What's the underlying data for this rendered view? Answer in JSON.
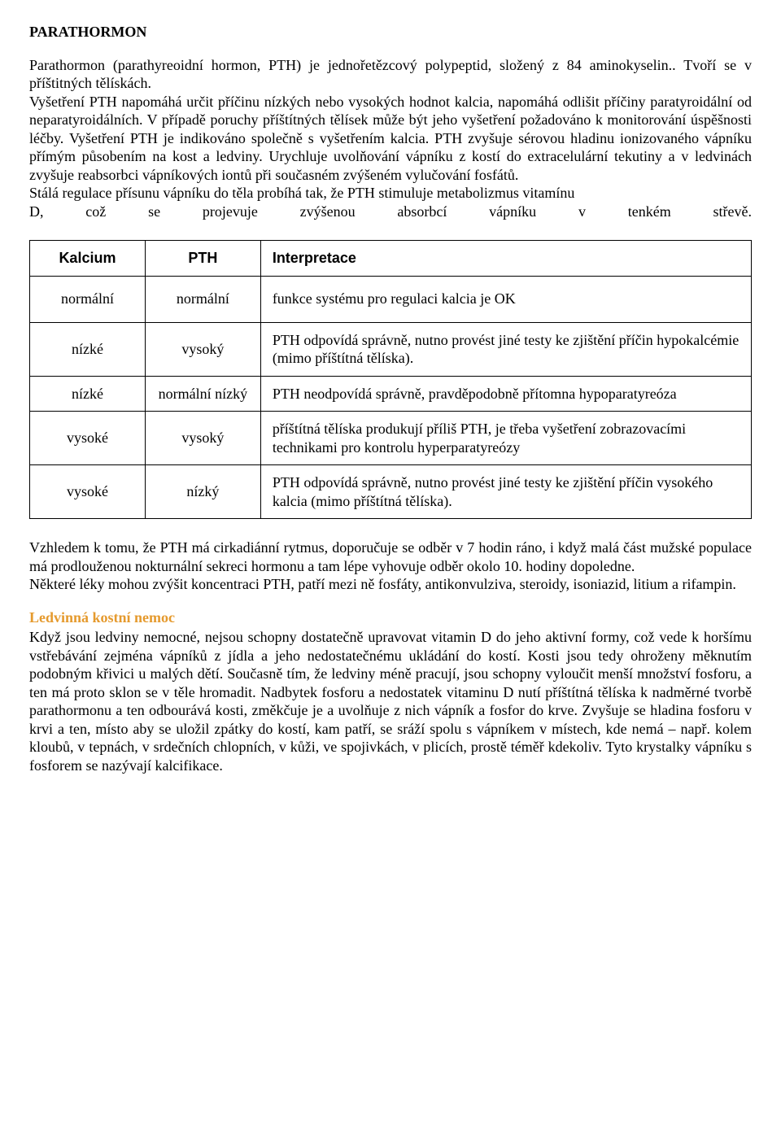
{
  "title": "PARATHORMON",
  "paragraphs": {
    "p1": "Parathormon (parathyreoidní hormon, PTH) je jednořetězcový polypeptid, složený z 84 aminokyselin.. Tvoří se v příštitných tělískách.",
    "p2": "Vyšetření PTH napomáhá určit příčinu nízkých nebo vysokých hodnot kalcia, napomáhá odlišit příčiny paratyroidální od neparatyroidálních. V případě poruchy příštítných tělísek může být jeho vyšetření požadováno k monitorování úspěšnosti léčby. Vyšetření PTH je indikováno společně s vyšetřením kalcia. PTH zvyšuje sérovou hladinu ionizovaného vápníku přímým působením na kost a ledviny. Urychluje uvolňování vápníku z kostí do extracelulární tekutiny a v ledvinách zvyšuje reabsorbci vápníkových iontů při současném zvýšeném vylučování fosfátů.",
    "p3a": "Stálá regulace přísunu vápníku do těla probíhá tak, že PTH stimuluje metabolizmus vitamínu",
    "p3b": "D, což se projevuje zvýšenou absorbcí vápníku v tenkém střevě."
  },
  "table": {
    "columns": [
      "Kalcium",
      "PTH",
      "Interpretace"
    ],
    "rows": [
      [
        "normální",
        "normální",
        "funkce systému pro regulaci kalcia je OK"
      ],
      [
        "nízké",
        "vysoký",
        "PTH odpovídá správně, nutno provést jiné testy ke zjištění příčin hypokalcémie (mimo příštítná tělíska)."
      ],
      [
        "nízké",
        "normální nízký",
        "PTH neodpovídá správně, pravděpodobně přítomna hypoparatyreóza"
      ],
      [
        "vysoké",
        "vysoký",
        "příštítná tělíska produkují příliš PTH, je třeba vyšetření zobrazovacími technikami pro kontrolu hyperparatyreózy"
      ],
      [
        "vysoké",
        "nízký",
        "PTH odpovídá správně, nutno provést jiné testy ke zjištění příčin vysokého kalcia (mimo příštítná tělíska)."
      ]
    ]
  },
  "after_table": {
    "p4": "Vzhledem k tomu, že PTH má cirkadiánní rytmus, doporučuje se odběr v 7 hodin ráno, i když malá část mužské populace má prodlouženou nokturnální sekreci hormonu a tam lépe vyhovuje odběr okolo 10. hodiny dopoledne.",
    "p5": "Některé léky mohou zvýšit koncentraci PTH, patří mezi ně fosfáty, antikonvulziva, steroidy, isoniazid, litium a rifampin."
  },
  "subheading": "Ledvinná kostní nemoc",
  "kidney_para": "Když jsou ledviny nemocné, nejsou schopny dostatečně upravovat vitamin D do jeho aktivní formy, což vede k horšímu vstřebávání zejména vápníků z jídla a jeho nedostatečnému ukládání do kostí. Kosti jsou tedy ohroženy měknutím podobným křivici u malých dětí. Současně tím, že ledviny méně pracují, jsou schopny vyloučit menší množství fosforu, a ten má proto sklon se v těle hromadit. Nadbytek fosforu a nedostatek vitaminu D nutí příštítná tělíska k nadměrné tvorbě parathormonu a ten odbourává kosti, změkčuje je a uvolňuje z nich vápník a fosfor do krve. Zvyšuje se hladina fosforu v krvi a ten, místo aby se uložil zpátky do kostí, kam patří, se sráží spolu s vápníkem v místech, kde nemá – např. kolem kloubů, v tepnách, v srdečních chlopních, v kůži, ve spojivkách, v plicích, prostě téměř kdekoliv. Tyto krystalky vápníku s fosforem se nazývají kalcifikace.",
  "colors": {
    "text": "#000000",
    "background": "#ffffff",
    "subheading": "#e59a2e",
    "border": "#000000"
  }
}
